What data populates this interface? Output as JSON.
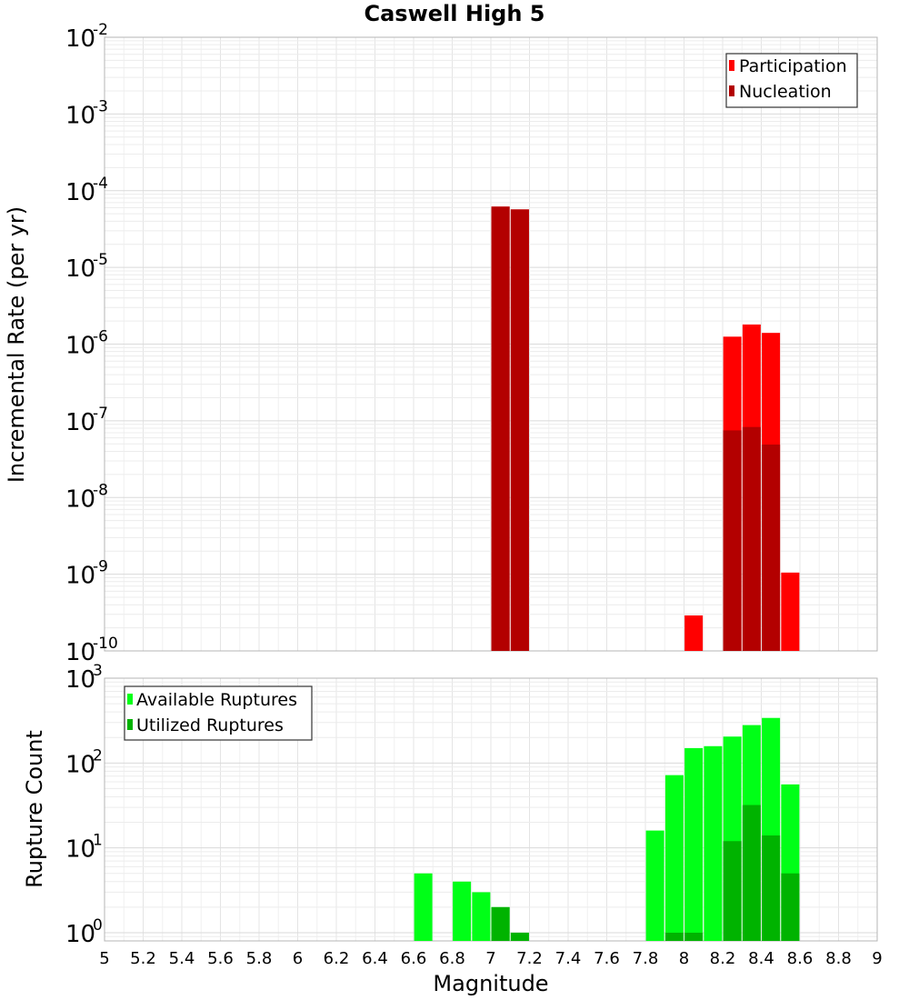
{
  "chart_data": [
    {
      "type": "bar",
      "title": "Caswell High 5",
      "xlabel": "",
      "ylabel": "Incremental Rate (per yr)",
      "yscale": "log",
      "ylim": [
        1e-10,
        0.01
      ],
      "xlim": [
        5,
        9
      ],
      "ytick_labels": [
        {
          "base": "10",
          "exp": "-10",
          "value": 1e-10
        },
        {
          "base": "10",
          "exp": "-9",
          "value": 1e-09
        },
        {
          "base": "10",
          "exp": "-8",
          "value": 1e-08
        },
        {
          "base": "10",
          "exp": "-7",
          "value": 1e-07
        },
        {
          "base": "10",
          "exp": "-6",
          "value": 1e-06
        },
        {
          "base": "10",
          "exp": "-5",
          "value": 1e-05
        },
        {
          "base": "10",
          "exp": "-4",
          "value": 0.0001
        },
        {
          "base": "10",
          "exp": "-3",
          "value": 0.001
        },
        {
          "base": "10",
          "exp": "-2",
          "value": 0.01
        }
      ],
      "grid": true,
      "legend_position": "top-right",
      "series": [
        {
          "name": "Participation",
          "color": "#ff0000",
          "points": [
            {
              "x": 7.05,
              "y": 6.2e-05
            },
            {
              "x": 7.15,
              "y": 5.7e-05
            },
            {
              "x": 8.05,
              "y": 2.9e-10
            },
            {
              "x": 8.25,
              "y": 1.25e-06
            },
            {
              "x": 8.35,
              "y": 1.8e-06
            },
            {
              "x": 8.45,
              "y": 1.4e-06
            },
            {
              "x": 8.55,
              "y": 1.05e-09
            }
          ]
        },
        {
          "name": "Nucleation",
          "color": "#b30000",
          "points": [
            {
              "x": 7.05,
              "y": 6.2e-05
            },
            {
              "x": 7.15,
              "y": 5.7e-05
            },
            {
              "x": 8.25,
              "y": 7.5e-08
            },
            {
              "x": 8.35,
              "y": 8.3e-08
            },
            {
              "x": 8.45,
              "y": 4.9e-08
            }
          ]
        }
      ]
    },
    {
      "type": "bar",
      "title": "",
      "xlabel": "Magnitude",
      "ylabel": "Rupture Count",
      "yscale": "log",
      "ylim": [
        0.8,
        1000
      ],
      "xlim": [
        5,
        9
      ],
      "xticks": [
        "5",
        "5.2",
        "5.4",
        "5.6",
        "5.8",
        "6",
        "6.2",
        "6.4",
        "6.6",
        "6.8",
        "7",
        "7.2",
        "7.4",
        "7.6",
        "7.8",
        "8",
        "8.2",
        "8.4",
        "8.6",
        "8.8",
        "9"
      ],
      "ytick_labels": [
        {
          "base": "10",
          "exp": "0",
          "value": 1
        },
        {
          "base": "10",
          "exp": "1",
          "value": 10
        },
        {
          "base": "10",
          "exp": "2",
          "value": 100
        },
        {
          "base": "10",
          "exp": "3",
          "value": 1000
        }
      ],
      "grid": true,
      "legend_position": "top-left",
      "series": [
        {
          "name": "Available Ruptures",
          "color": "#00ff17",
          "points": [
            {
              "x": 6.65,
              "y": 5
            },
            {
              "x": 6.85,
              "y": 4
            },
            {
              "x": 6.95,
              "y": 3
            },
            {
              "x": 7.05,
              "y": 2
            },
            {
              "x": 7.15,
              "y": 1
            },
            {
              "x": 7.85,
              "y": 16
            },
            {
              "x": 7.95,
              "y": 72
            },
            {
              "x": 8.05,
              "y": 150
            },
            {
              "x": 8.15,
              "y": 158
            },
            {
              "x": 8.25,
              "y": 205
            },
            {
              "x": 8.35,
              "y": 280
            },
            {
              "x": 8.45,
              "y": 340
            },
            {
              "x": 8.55,
              "y": 56
            }
          ]
        },
        {
          "name": "Utilized Ruptures",
          "color": "#00b300",
          "points": [
            {
              "x": 7.05,
              "y": 2
            },
            {
              "x": 7.15,
              "y": 1
            },
            {
              "x": 7.95,
              "y": 1
            },
            {
              "x": 8.05,
              "y": 1
            },
            {
              "x": 8.25,
              "y": 12
            },
            {
              "x": 8.35,
              "y": 32
            },
            {
              "x": 8.45,
              "y": 14
            },
            {
              "x": 8.55,
              "y": 5
            }
          ]
        }
      ]
    }
  ]
}
